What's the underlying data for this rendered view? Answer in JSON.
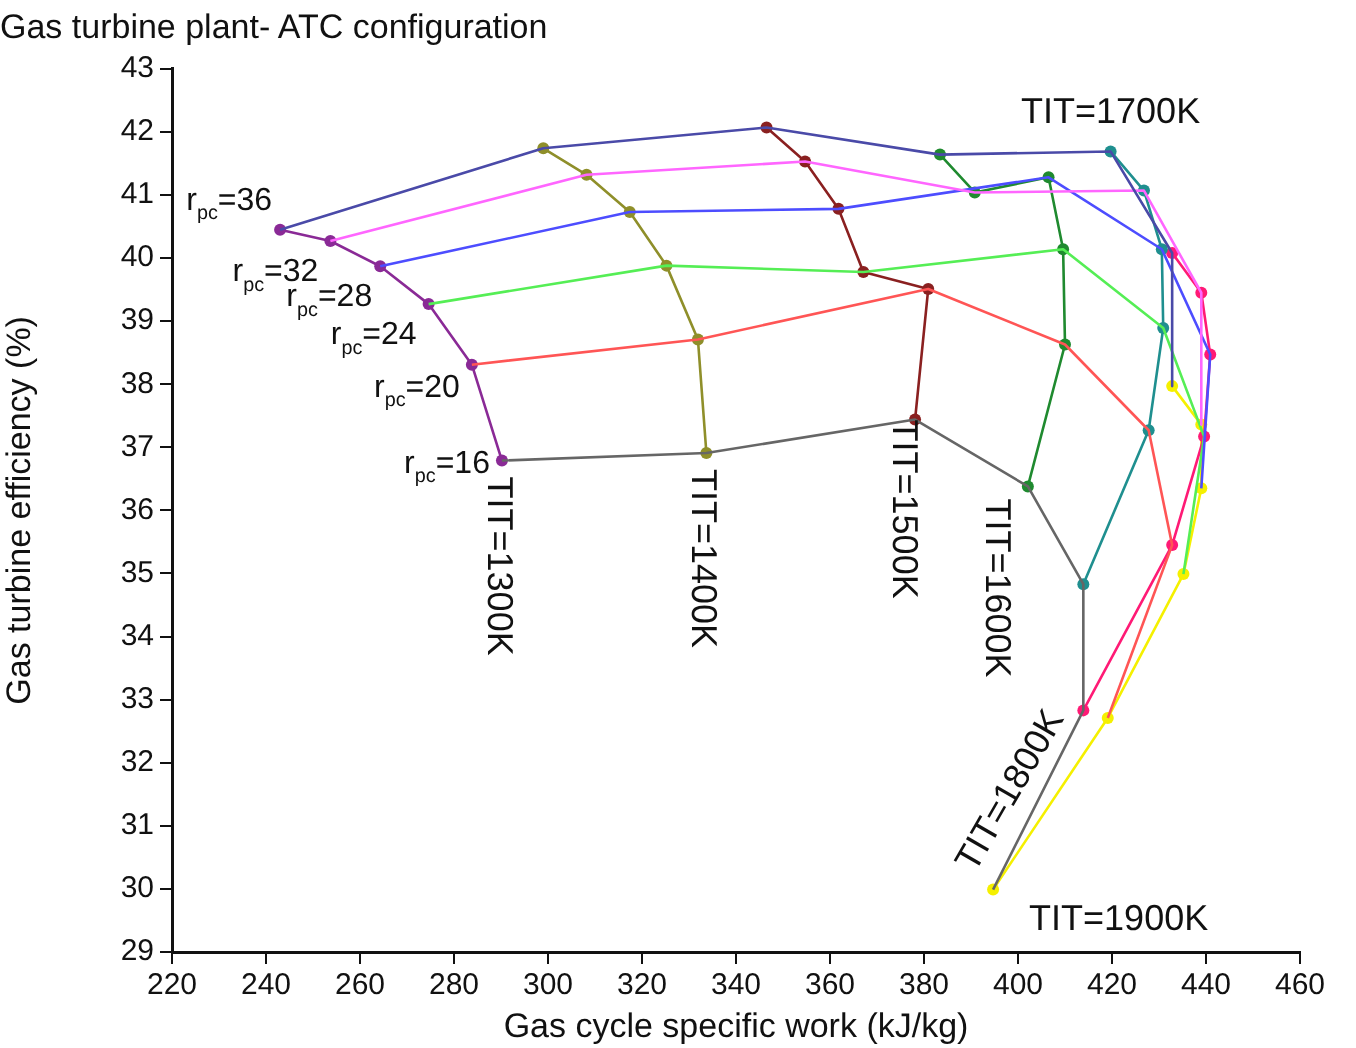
{
  "chart_data": {
    "type": "line",
    "title": "Gas turbine plant- ATC configuration",
    "xlabel": "Gas cycle specific work (kJ/kg)",
    "ylabel": "Gas turbine efficiency (%)",
    "xlim": [
      220,
      460
    ],
    "xticks": [
      220,
      240,
      260,
      280,
      300,
      320,
      340,
      360,
      380,
      400,
      420,
      440,
      460
    ],
    "ylim": [
      29,
      43
    ],
    "yticks": [
      29,
      30,
      31,
      32,
      33,
      34,
      35,
      36,
      37,
      38,
      39,
      40,
      41,
      42,
      43
    ],
    "grid": false,
    "legend": false,
    "line_style": "solid",
    "series": [
      {
        "name": "r$_{pc}$=36",
        "color": "#4a4aa8",
        "marker": "none",
        "x": [
          243.0,
          299.0,
          346.5,
          383.4,
          419.7,
          432.8,
          432.8
        ],
        "values": [
          40.45,
          41.74,
          42.07,
          41.64,
          41.69,
          40.08,
          37.97
        ]
      },
      {
        "name": "r$_{pc}$=32",
        "color": "#ff66ff",
        "marker": "none",
        "x": [
          253.7,
          308.2,
          354.7,
          390.8,
          426.8,
          439.0,
          439.0
        ],
        "values": [
          40.27,
          41.32,
          41.53,
          41.04,
          41.07,
          39.45,
          37.36
        ]
      },
      {
        "name": "r$_{pc}$=28",
        "color": "#4d4dff",
        "marker": "none",
        "x": [
          264.3,
          317.4,
          361.8,
          406.5,
          430.6,
          440.9,
          439.0
        ],
        "values": [
          39.87,
          40.73,
          40.78,
          41.28,
          40.14,
          38.47,
          36.35
        ]
      },
      {
        "name": "r$_{pc}$=24",
        "color": "#55ee55",
        "marker": "none",
        "x": [
          274.6,
          325.2,
          367.1,
          409.6,
          430.9,
          439.6,
          435.2
        ],
        "values": [
          39.27,
          39.88,
          39.78,
          40.14,
          38.89,
          37.17,
          34.99
        ]
      },
      {
        "name": "r$_{pc}$=20",
        "color": "#ff5555",
        "marker": "none",
        "x": [
          283.8,
          331.9,
          380.9,
          410.0,
          427.8,
          432.8,
          419.1
        ],
        "values": [
          38.31,
          38.71,
          39.51,
          38.63,
          37.27,
          35.45,
          32.71
        ]
      },
      {
        "name": "r$_{pc}$=16",
        "color": "#666666",
        "marker": "none",
        "x": [
          290.2,
          333.7,
          378.1,
          402.1,
          413.9,
          413.9,
          394.7
        ],
        "values": [
          36.79,
          36.91,
          37.44,
          36.38,
          34.83,
          32.83,
          29.99
        ]
      },
      {
        "name": "TIT=1300K",
        "color": "#8a2a96",
        "marker": "circle",
        "x": [
          243.0,
          253.7,
          264.3,
          274.6,
          283.8,
          290.2
        ],
        "values": [
          40.45,
          40.27,
          39.87,
          39.27,
          38.31,
          36.79
        ]
      },
      {
        "name": "TIT=1400K",
        "color": "#8f8f2a",
        "marker": "circle",
        "x": [
          299.0,
          308.2,
          317.4,
          325.2,
          331.9,
          333.7
        ],
        "values": [
          41.74,
          41.32,
          40.73,
          39.88,
          38.71,
          36.91
        ]
      },
      {
        "name": "TIT=1500K",
        "color": "#8a2020",
        "marker": "circle",
        "x": [
          346.5,
          354.7,
          361.8,
          367.1,
          380.9,
          378.1
        ],
        "values": [
          42.07,
          41.53,
          40.78,
          39.78,
          39.51,
          37.44
        ]
      },
      {
        "name": "TIT=1600K",
        "color": "#1f8a2f",
        "marker": "circle",
        "x": [
          383.4,
          390.8,
          406.5,
          409.6,
          410.0,
          402.1
        ],
        "values": [
          41.64,
          41.04,
          41.28,
          40.14,
          38.63,
          36.38
        ]
      },
      {
        "name": "TIT=1700K",
        "color": "#1f8f8f",
        "marker": "circle",
        "x": [
          419.7,
          426.8,
          430.6,
          430.9,
          427.8,
          413.9
        ],
        "values": [
          41.69,
          41.07,
          40.14,
          38.89,
          37.27,
          34.83
        ]
      },
      {
        "name": "TIT=1800K",
        "color": "#ff1a75",
        "marker": "circle",
        "x": [
          432.8,
          439.0,
          440.9,
          439.6,
          432.8,
          413.9
        ],
        "values": [
          40.08,
          39.45,
          38.47,
          37.17,
          35.45,
          32.83
        ]
      },
      {
        "name": "TIT=1900K",
        "color": "#f5f000",
        "marker": "circle",
        "x": [
          432.8,
          439.0,
          439.0,
          435.2,
          419.1,
          394.7
        ],
        "values": [
          37.97,
          37.36,
          36.35,
          34.99,
          32.71,
          29.99
        ]
      }
    ]
  }
}
